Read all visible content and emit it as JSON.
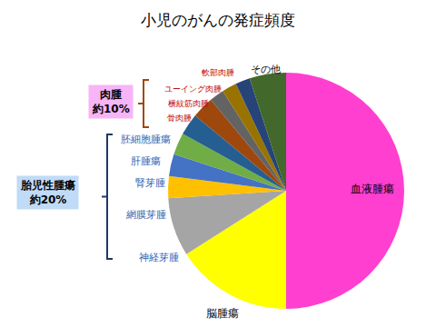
{
  "chart_data": {
    "type": "pie",
    "title": "小児のがんの発症頻度",
    "categories": [
      "血液腫瘍",
      "脳腫瘍",
      "神経芽腫",
      "網膜芽腫",
      "腎芽腫",
      "肝腫瘍",
      "胚細胞腫瘍",
      "骨肉腫",
      "横紋筋肉腫",
      "ユーイング肉腫",
      "軟部肉腫",
      "その他"
    ],
    "values": [
      50,
      16,
      8,
      3,
      3,
      3,
      3,
      3,
      2,
      2,
      2,
      5
    ],
    "colors": [
      "#ff3fd0",
      "#ffff00",
      "#a5a5a5",
      "#ffc000",
      "#4472c4",
      "#70ad47",
      "#255e91",
      "#9e480e",
      "#636363",
      "#997300",
      "#264478",
      "#43682b"
    ],
    "groups": [
      {
        "name": "肉腫",
        "label": "約10%",
        "members": [
          "骨肉腫",
          "横紋筋肉腫",
          "ユーイング肉腫",
          "軟部肉腫"
        ]
      },
      {
        "name": "胎児性腫瘍",
        "label": "約20%",
        "members": [
          "神経芽腫",
          "網膜芽腫",
          "腎芽腫",
          "肝腫瘍",
          "胚細胞腫瘍"
        ]
      }
    ]
  }
}
